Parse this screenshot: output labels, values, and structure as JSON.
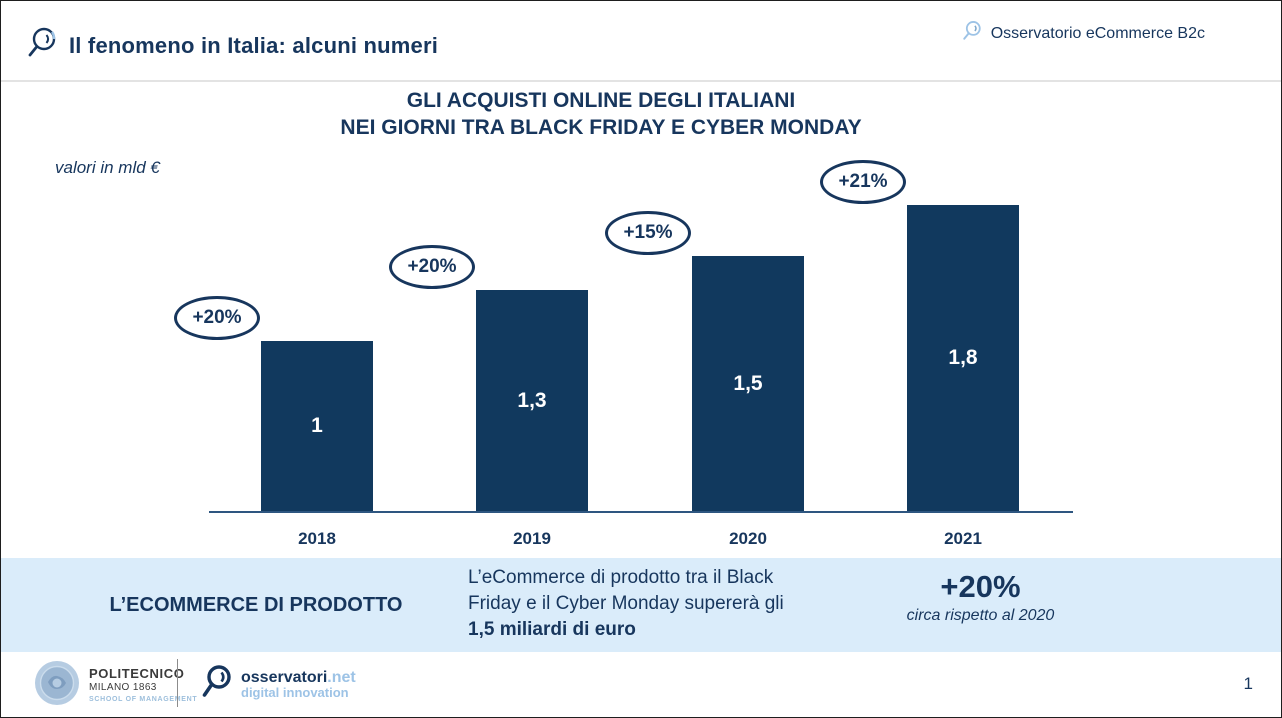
{
  "header": {
    "title": "Il fenomeno in Italia: alcuni numeri",
    "brand": "Osservatorio eCommerce B2c"
  },
  "chart": {
    "title_line1": "GLI ACQUISTI ONLINE DEGLI ITALIANI",
    "title_line2": "NEI GIORNI TRA BLACK FRIDAY E CYBER MONDAY",
    "unit_label": "valori in mld €"
  },
  "chart_data": {
    "type": "bar",
    "title": "GLI ACQUISTI ONLINE DEGLI ITALIANI NEI GIORNI TRA BLACK FRIDAY E CYBER MONDAY",
    "ylabel": "valori in mld €",
    "categories": [
      "2018",
      "2019",
      "2020",
      "2021"
    ],
    "values": [
      1,
      1.3,
      1.5,
      1.8
    ],
    "value_labels": [
      "1",
      "1,3",
      "1,5",
      "1,8"
    ],
    "growth_labels": [
      "+20%",
      "+20%",
      "+15%",
      "+21%"
    ],
    "ylim": [
      0,
      2
    ],
    "grid": false,
    "legend": null,
    "bar_color": "#11395E"
  },
  "band": {
    "label": "L’ECOMMERCE DI PRODOTTO",
    "text_line1": "L’eCommerce di prodotto tra il Black",
    "text_line2": "Friday e il Cyber Monday supererà gli",
    "text_bold": "1,5 miliardi di euro",
    "kpi_value": "+20%",
    "kpi_note": "circa rispetto al 2020"
  },
  "footer": {
    "polimi_line1": "POLITECNICO",
    "polimi_line2": "MILANO 1863",
    "polimi_line3": "SCHOOL OF MANAGEMENT",
    "osservatori_name": "osservatori",
    "osservatori_net": ".net",
    "osservatori_sub": "digital innovation",
    "page_number": "1"
  },
  "colors": {
    "navy": "#17365D",
    "bar": "#11395E",
    "band_bg": "#DAECFA",
    "light_blue": "#9DC3E6",
    "axis": "#2E5680"
  }
}
